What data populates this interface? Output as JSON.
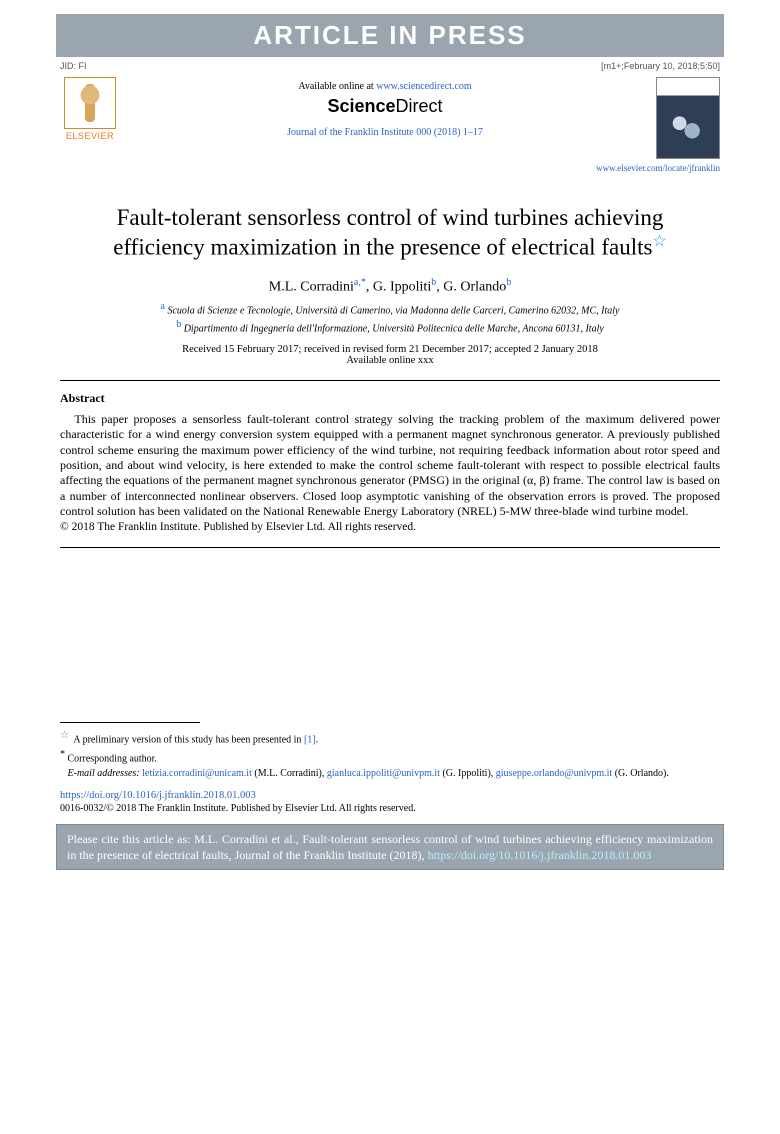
{
  "banner": "ARTICLE IN PRESS",
  "jid_left": "JID: FI",
  "jid_right": "[m1+;February 10, 2018;5:50]",
  "elsevier": "ELSEVIER",
  "available_prefix": "Available online at ",
  "available_url": "www.sciencedirect.com",
  "sciencedirect": "ScienceDirect",
  "journal_ref": "Journal of the Franklin Institute 000 (2018) 1–17",
  "locate_url": "www.elsevier.com/locate/jfranklin",
  "title": "Fault-tolerant sensorless control of wind turbines achieving efficiency maximization in the presence of electrical faults",
  "star": "☆",
  "authors": {
    "a1": "M.L. Corradini",
    "a1_sup": "a,*",
    "a2": "G. Ippoliti",
    "a2_sup": "b",
    "a3": "G. Orlando",
    "a3_sup": "b"
  },
  "affil_a": "Scuola di Scienze e Tecnologie, Università di Camerino, via Madonna delle Carceri, Camerino 62032, MC, Italy",
  "affil_b": "Dipartimento di Ingegneria dell'Informazione, Università Politecnica delle Marche, Ancona 60131, Italy",
  "dates": "Received 15 February 2017; received in revised form 21 December 2017; accepted 2 January 2018",
  "avail_xxx": "Available online xxx",
  "abstract_head": "Abstract",
  "abstract": "This paper proposes a sensorless fault-tolerant control strategy solving the tracking problem of the maximum delivered power characteristic for a wind energy conversion system equipped with a permanent magnet synchronous generator. A previously published control scheme ensuring the maximum power efficiency of the wind turbine, not requiring feedback information about rotor speed and position, and about wind velocity, is here extended to make the control scheme fault-tolerant with respect to possible electrical faults affecting the equations of the permanent magnet synchronous generator (PMSG) in the original (α, β) frame. The control law is based on a number of interconnected nonlinear observers. Closed loop asymptotic vanishing of the observation errors is proved. The proposed control solution has been validated on the National Renewable Energy Laboratory (NREL) 5-MW three-blade wind turbine model.",
  "copyright": "© 2018 The Franklin Institute. Published by Elsevier Ltd. All rights reserved.",
  "fn_star": "A preliminary version of this study has been presented in ",
  "fn_star_ref": "[1]",
  "fn_star_period": ".",
  "fn_corr": "Corresponding author.",
  "fn_email_label": "E-mail addresses:",
  "emails": {
    "e1": "letizia.corradini@unicam.it",
    "n1": "(M.L. Corradini),",
    "e2": "gianluca.ippoliti@univpm.it",
    "n2": "(G. Ippoliti),",
    "e3": "giuseppe.orlando@univpm.it",
    "n3": "(G. Orlando)."
  },
  "doi": "https://doi.org/10.1016/j.jfranklin.2018.01.003",
  "rights_line": "0016-0032/© 2018 The Franklin Institute. Published by Elsevier Ltd. All rights reserved.",
  "cite_prefix": "Please cite this article as: M.L. Corradini et al., Fault-tolerant sensorless control of wind turbines achieving efficiency maximization in the presence of electrical faults, Journal of the Franklin Institute (2018), ",
  "cite_doi": "https://doi.org/10.1016/j.jfranklin.2018.01.003"
}
